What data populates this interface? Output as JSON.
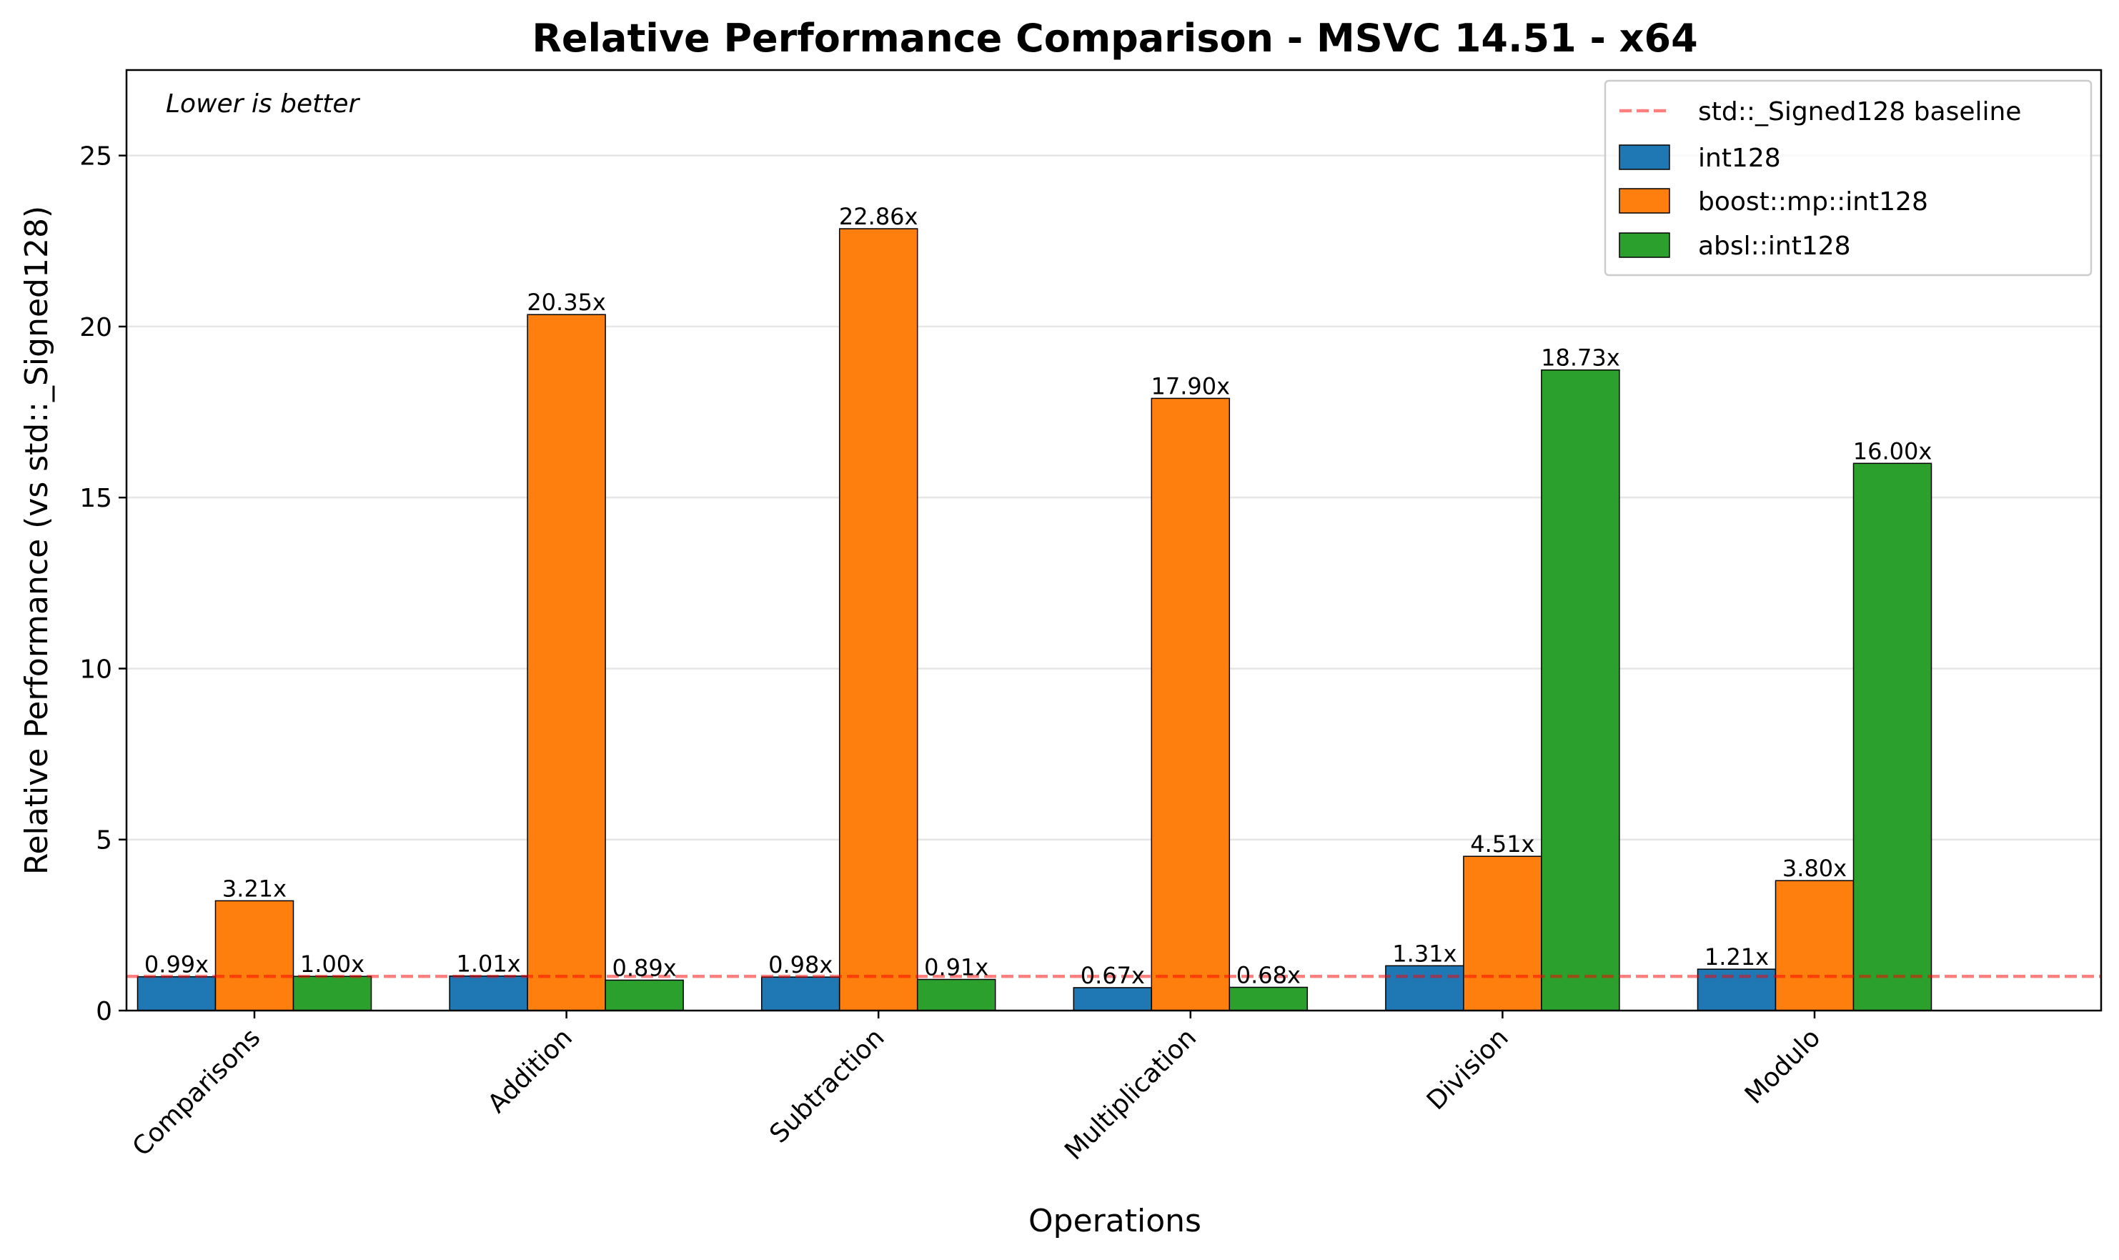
{
  "chart_data": {
    "type": "bar",
    "title": "Relative Performance Comparison - MSVC 14.51 - x64",
    "xlabel": "Operations",
    "ylabel": "Relative Performance (vs std::_Signed128)",
    "note": "Lower is better",
    "categories": [
      "Comparisons",
      "Addition",
      "Subtraction",
      "Multiplication",
      "Division",
      "Modulo"
    ],
    "series": [
      {
        "name": "int128",
        "color": "#1f77b4",
        "values": [
          0.99,
          1.01,
          0.98,
          0.67,
          1.31,
          1.21
        ],
        "labels": [
          "0.99x",
          "1.01x",
          "0.98x",
          "0.67x",
          "1.31x",
          "1.21x"
        ]
      },
      {
        "name": "boost::mp::int128",
        "color": "#ff7f0e",
        "values": [
          3.21,
          20.35,
          22.86,
          17.9,
          4.51,
          3.8
        ],
        "labels": [
          "3.21x",
          "20.35x",
          "22.86x",
          "17.90x",
          "4.51x",
          "3.80x"
        ]
      },
      {
        "name": "absl::int128",
        "color": "#2ca02c",
        "values": [
          1.0,
          0.89,
          0.91,
          0.68,
          18.73,
          16.0
        ],
        "labels": [
          "1.00x",
          "0.89x",
          "0.91x",
          "0.68x",
          "18.73x",
          "16.00x"
        ]
      }
    ],
    "baseline": {
      "name": "std::_Signed128 baseline",
      "value": 1.0,
      "color": "#ff0000"
    },
    "ylim": [
      0,
      27.5
    ],
    "yticks": [
      0,
      5,
      10,
      15,
      20,
      25
    ],
    "ytick_labels": [
      "0",
      "5",
      "10",
      "15",
      "20",
      "25"
    ],
    "grid": "y",
    "legend_position": "top-right"
  }
}
